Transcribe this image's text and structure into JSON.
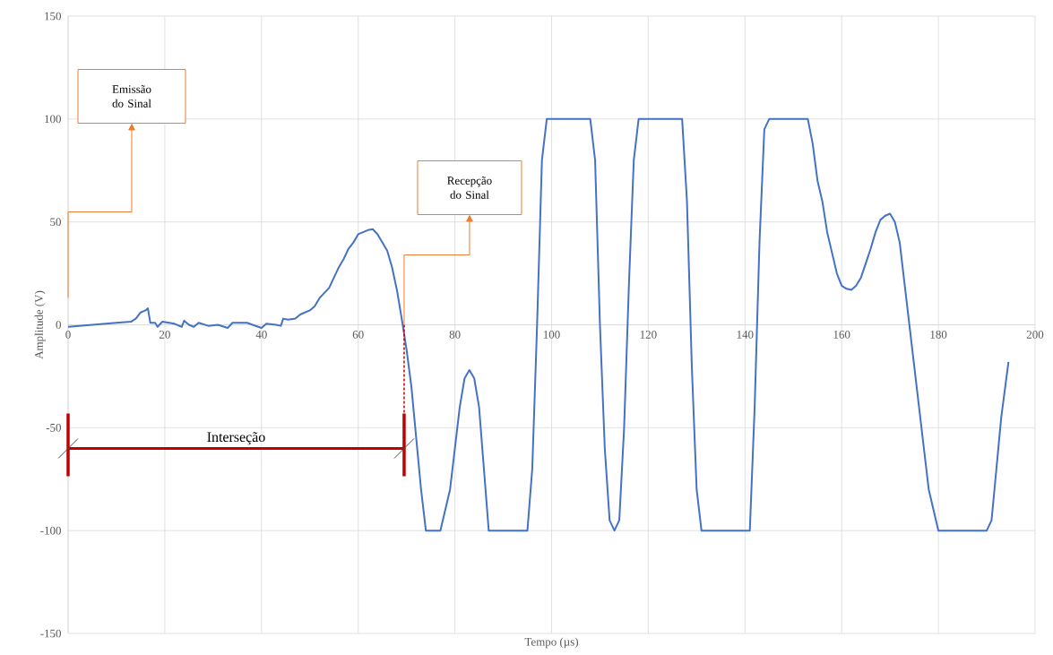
{
  "chart_data": {
    "type": "line",
    "xlabel": "Tempo (µs)",
    "ylabel": "Amplitude (V)",
    "x": [
      0,
      5,
      10,
      13,
      14,
      15,
      16,
      16.5,
      17,
      18,
      18.5,
      19.5,
      22,
      23.5,
      24,
      25,
      26,
      27,
      29,
      31,
      33,
      34,
      37,
      40,
      41,
      43,
      44,
      44.5,
      45.5,
      47,
      48,
      50,
      51,
      52,
      54,
      55,
      56,
      57,
      58,
      59,
      60,
      61,
      62,
      63,
      64,
      65,
      66,
      67,
      68,
      69,
      70,
      71,
      72,
      73,
      74,
      77,
      79,
      81,
      82,
      83,
      84,
      85,
      86,
      87,
      95,
      96,
      97,
      98,
      99,
      108,
      109,
      110,
      111,
      112,
      113,
      114,
      115,
      116,
      117,
      118,
      127,
      128,
      129,
      130,
      131,
      141,
      142,
      143,
      144,
      145,
      153,
      154,
      155,
      156,
      157,
      158,
      159,
      160,
      161,
      162,
      163,
      164,
      165,
      166,
      167,
      168,
      169,
      170,
      171,
      172,
      173,
      174,
      175,
      176,
      177,
      178,
      180,
      190,
      191,
      192,
      193,
      194.5
    ],
    "values": [
      -1,
      0,
      1,
      1.5,
      3,
      6,
      7,
      8,
      1,
      1,
      -1,
      1.5,
      0.5,
      -1,
      2,
      0,
      -1,
      1,
      -0.5,
      0,
      -1.5,
      1,
      1,
      -1.5,
      0.5,
      0,
      -0.5,
      3,
      2.5,
      3,
      5,
      7,
      9,
      13,
      18,
      23,
      28,
      32,
      37,
      40,
      44,
      45,
      46,
      46.5,
      44,
      40,
      36,
      28,
      17,
      3,
      -12,
      -30,
      -55,
      -80,
      -100,
      -100,
      -80,
      -40,
      -26,
      -22,
      -26,
      -40,
      -70,
      -100,
      -100,
      -70,
      0,
      80,
      100,
      100,
      80,
      0,
      -60,
      -95,
      -100,
      -95,
      -50,
      20,
      80,
      100,
      100,
      60,
      -20,
      -80,
      -100,
      -100,
      -40,
      40,
      95,
      100,
      100,
      88,
      70,
      60,
      45,
      35,
      25,
      19,
      17.5,
      17,
      19,
      23,
      30,
      37,
      45,
      51,
      53,
      54,
      50,
      40,
      20,
      0,
      -20,
      -40,
      -60,
      -80,
      -100,
      -100,
      -95,
      -70,
      -45,
      -18
    ],
    "color": "#4472c4",
    "xlim": [
      0,
      200
    ],
    "ylim": [
      -150,
      150
    ],
    "xticks": [
      0,
      20,
      40,
      60,
      80,
      100,
      120,
      140,
      160,
      180,
      200
    ],
    "yticks": [
      -150,
      -100,
      -50,
      0,
      50,
      100,
      150
    ],
    "grid": true,
    "annotations": [
      "Emissão do Sinal",
      "Recepção do Sinal",
      "Interseção"
    ]
  }
}
